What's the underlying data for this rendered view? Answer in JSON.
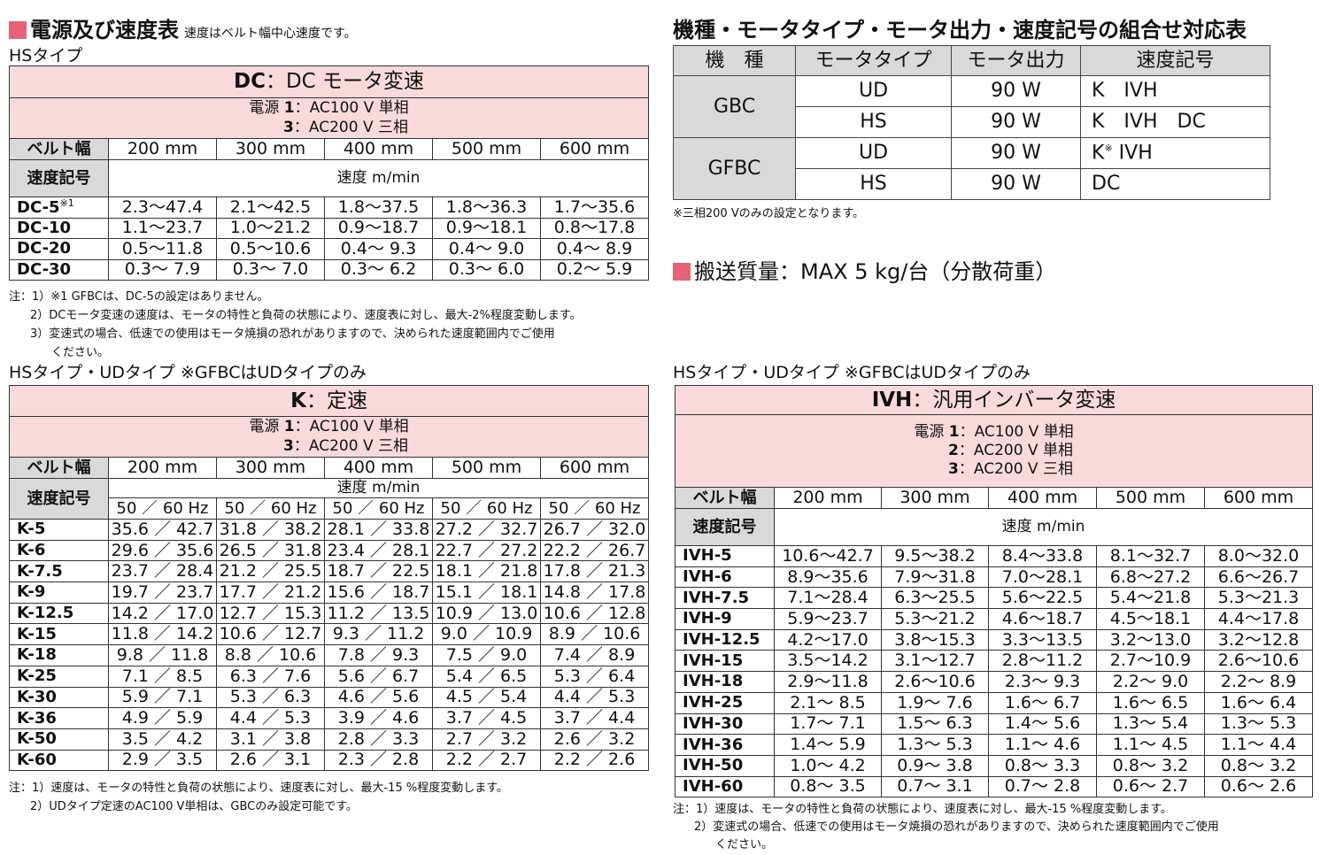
{
  "colors": {
    "accent": "#e8627a",
    "pink_band": "#f9dadc",
    "gray_header": "#d9d9d9"
  },
  "power_speed": {
    "title": "電源及び速度表",
    "subtitle": "速度はベルト幅中心速度です。",
    "hs_label": "HSタイプ",
    "dc_table": {
      "title_code": "DC",
      "title_rest": "：DC モータ変速",
      "power_prefix": "電源",
      "power": [
        {
          "n": "1",
          "t": "：AC100 V 単相"
        },
        {
          "n": "3",
          "t": "：AC200 V 三相"
        }
      ],
      "belt_label": "ベルト幅",
      "belt_widths": [
        "200 mm",
        "300 mm",
        "400 mm",
        "500 mm",
        "600 mm"
      ],
      "code_label": "速度記号",
      "unit_label": "速度 m/min",
      "rows": [
        {
          "code": "DC-5",
          "mark": "※1",
          "v": [
            "2.3～47.4",
            "2.1～42.5",
            "1.8～37.5",
            "1.8～36.3",
            "1.7～35.6"
          ]
        },
        {
          "code": "DC-10",
          "v": [
            "1.1～23.7",
            "1.0～21.2",
            "0.9～18.7",
            "0.9～18.1",
            "0.8～17.8"
          ]
        },
        {
          "code": "DC-20",
          "v": [
            "0.5～11.8",
            "0.5～10.6",
            "0.4～ 9.3",
            "0.4～ 9.0",
            "0.4～ 8.9"
          ]
        },
        {
          "code": "DC-30",
          "v": [
            "0.3～ 7.9",
            "0.3～ 7.0",
            "0.3～ 6.2",
            "0.3～ 6.0",
            "0.2～ 5.9"
          ]
        }
      ],
      "notes": [
        "注：1）※1 GFBCは、DC-5の設定はありません。",
        "2）DCモータ変速の速度は、モータの特性と負荷の状態により、速度表に対し、最大-2%程度変動します。",
        "3）変速式の場合、低速での使用はモータ焼損の恐れがありますので、決められた速度範囲内でご使用",
        "ください。"
      ]
    },
    "k_label": "HSタイプ・UDタイプ ※GFBCはUDタイプのみ",
    "k_table": {
      "title_code": "K",
      "title_rest": "：定速",
      "power_prefix": "電源",
      "power": [
        {
          "n": "1",
          "t": "：AC100 V 単相"
        },
        {
          "n": "3",
          "t": "：AC200 V 三相"
        }
      ],
      "belt_label": "ベルト幅",
      "belt_widths": [
        "200 mm",
        "300 mm",
        "400 mm",
        "500 mm",
        "600 mm"
      ],
      "code_label": "速度記号",
      "unit_label": "速度 m/min",
      "hz_label": "50 ／ 60 Hz",
      "rows": [
        {
          "code": "K-5",
          "v": [
            "35.6 ／ 42.7",
            "31.8 ／ 38.2",
            "28.1 ／ 33.8",
            "27.2 ／ 32.7",
            "26.7 ／ 32.0"
          ]
        },
        {
          "code": "K-6",
          "v": [
            "29.6 ／ 35.6",
            "26.5 ／ 31.8",
            "23.4 ／ 28.1",
            "22.7 ／ 27.2",
            "22.2 ／ 26.7"
          ]
        },
        {
          "code": "K-7.5",
          "v": [
            "23.7 ／ 28.4",
            "21.2 ／ 25.5",
            "18.7 ／ 22.5",
            "18.1 ／ 21.8",
            "17.8 ／ 21.3"
          ]
        },
        {
          "code": "K-9",
          "v": [
            "19.7 ／ 23.7",
            "17.7 ／ 21.2",
            "15.6 ／ 18.7",
            "15.1 ／ 18.1",
            "14.8 ／ 17.8"
          ]
        },
        {
          "code": "K-12.5",
          "v": [
            "14.2 ／ 17.0",
            "12.7 ／ 15.3",
            "11.2 ／ 13.5",
            "10.9 ／ 13.0",
            "10.6 ／ 12.8"
          ]
        },
        {
          "code": "K-15",
          "v": [
            "11.8 ／ 14.2",
            "10.6 ／ 12.7",
            "9.3 ／ 11.2",
            "9.0 ／ 10.9",
            "8.9 ／ 10.6"
          ]
        },
        {
          "code": "K-18",
          "v": [
            "9.8 ／ 11.8",
            "8.8 ／ 10.6",
            "7.8 ／ 9.3",
            "7.5 ／ 9.0",
            "7.4 ／ 8.9"
          ]
        },
        {
          "code": "K-25",
          "v": [
            "7.1 ／ 8.5",
            "6.3 ／ 7.6",
            "5.6 ／ 6.7",
            "5.4 ／ 6.5",
            "5.3 ／ 6.4"
          ]
        },
        {
          "code": "K-30",
          "v": [
            "5.9 ／ 7.1",
            "5.3 ／ 6.3",
            "4.6 ／ 5.6",
            "4.5 ／ 5.4",
            "4.4 ／ 5.3"
          ]
        },
        {
          "code": "K-36",
          "v": [
            "4.9 ／ 5.9",
            "4.4 ／ 5.3",
            "3.9 ／ 4.6",
            "3.7 ／ 4.5",
            "3.7 ／ 4.4"
          ]
        },
        {
          "code": "K-50",
          "v": [
            "3.5 ／ 4.2",
            "3.1 ／ 3.8",
            "2.8 ／ 3.3",
            "2.7 ／ 3.2",
            "2.6 ／ 3.2"
          ]
        },
        {
          "code": "K-60",
          "v": [
            "2.9 ／ 3.5",
            "2.6 ／ 3.1",
            "2.3 ／ 2.8",
            "2.2 ／ 2.7",
            "2.2 ／ 2.6"
          ]
        }
      ],
      "notes": [
        "注：1）速度は、モータの特性と負荷の状態により、速度表に対し、最大-15 %程度変動します。",
        "2）UDタイプ定速のAC100 V単相は、GBCのみ設定可能です。"
      ]
    }
  },
  "combo": {
    "title": "機種・モータタイプ・モータ出力・速度記号の組合せ対応表",
    "headers": [
      "機　種",
      "モータタイプ",
      "モータ出力",
      "速度記号"
    ],
    "models": [
      {
        "name": "GBC",
        "rows": [
          {
            "type": "UD",
            "output": "90 W",
            "code": "K　IVH"
          },
          {
            "type": "HS",
            "output": "90 W",
            "code": "K　IVH　DC"
          }
        ]
      },
      {
        "name": "GFBC",
        "rows": [
          {
            "type": "UD",
            "output": "90 W",
            "code": "K",
            "mark": "※",
            "code_rest": " IVH"
          },
          {
            "type": "HS",
            "output": "90 W",
            "code": "DC"
          }
        ]
      }
    ],
    "note": "※三相200 Vのみの設定となります。"
  },
  "mass": {
    "label": "搬送質量：MAX 5 kg/台（分散荷重）"
  },
  "ivh": {
    "label": "HSタイプ・UDタイプ ※GFBCはUDタイプのみ",
    "title_code": "IVH",
    "title_rest": "：汎用インバータ変速",
    "power_prefix": "電源",
    "power": [
      {
        "n": "1",
        "t": "：AC100 V 単相"
      },
      {
        "n": "2",
        "t": "：AC200 V 単相"
      },
      {
        "n": "3",
        "t": "：AC200 V 三相"
      }
    ],
    "belt_label": "ベルト幅",
    "belt_widths": [
      "200 mm",
      "300 mm",
      "400 mm",
      "500 mm",
      "600 mm"
    ],
    "code_label": "速度記号",
    "unit_label": "速度 m/min",
    "rows": [
      {
        "code": "IVH-5",
        "v": [
          "10.6～42.7",
          "9.5～38.2",
          "8.4～33.8",
          "8.1～32.7",
          "8.0～32.0"
        ]
      },
      {
        "code": "IVH-6",
        "v": [
          "8.9～35.6",
          "7.9～31.8",
          "7.0～28.1",
          "6.8～27.2",
          "6.6～26.7"
        ]
      },
      {
        "code": "IVH-7.5",
        "v": [
          "7.1～28.4",
          "6.3～25.5",
          "5.6～22.5",
          "5.4～21.8",
          "5.3～21.3"
        ]
      },
      {
        "code": "IVH-9",
        "v": [
          "5.9～23.7",
          "5.3～21.2",
          "4.6～18.7",
          "4.5～18.1",
          "4.4～17.8"
        ]
      },
      {
        "code": "IVH-12.5",
        "v": [
          "4.2～17.0",
          "3.8～15.3",
          "3.3～13.5",
          "3.2～13.0",
          "3.2～12.8"
        ]
      },
      {
        "code": "IVH-15",
        "v": [
          "3.5～14.2",
          "3.1～12.7",
          "2.8～11.2",
          "2.7～10.9",
          "2.6～10.6"
        ]
      },
      {
        "code": "IVH-18",
        "v": [
          "2.9～11.8",
          "2.6～10.6",
          "2.3～ 9.3",
          "2.2～ 9.0",
          "2.2～ 8.9"
        ]
      },
      {
        "code": "IVH-25",
        "v": [
          "2.1～ 8.5",
          "1.9～ 7.6",
          "1.6～ 6.7",
          "1.6～ 6.5",
          "1.6～ 6.4"
        ]
      },
      {
        "code": "IVH-30",
        "v": [
          "1.7～ 7.1",
          "1.5～ 6.3",
          "1.4～ 5.6",
          "1.3～ 5.4",
          "1.3～ 5.3"
        ]
      },
      {
        "code": "IVH-36",
        "v": [
          "1.4～ 5.9",
          "1.3～ 5.3",
          "1.1～ 4.6",
          "1.1～ 4.5",
          "1.1～ 4.4"
        ]
      },
      {
        "code": "IVH-50",
        "v": [
          "1.0～ 4.2",
          "0.9～ 3.8",
          "0.8～ 3.3",
          "0.8～ 3.2",
          "0.8～ 3.2"
        ]
      },
      {
        "code": "IVH-60",
        "v": [
          "0.8～ 3.5",
          "0.7～ 3.1",
          "0.7～ 2.8",
          "0.6～ 2.7",
          "0.6～ 2.6"
        ]
      }
    ],
    "notes": [
      "注：1）速度は、モータの特性と負荷の状態により、速度表に対し、最大-15 %程度変動します。",
      "2）変速式の場合、低速での使用はモータ焼損の恐れがありますので、決められた速度範囲内でご使用",
      "ください。"
    ]
  }
}
